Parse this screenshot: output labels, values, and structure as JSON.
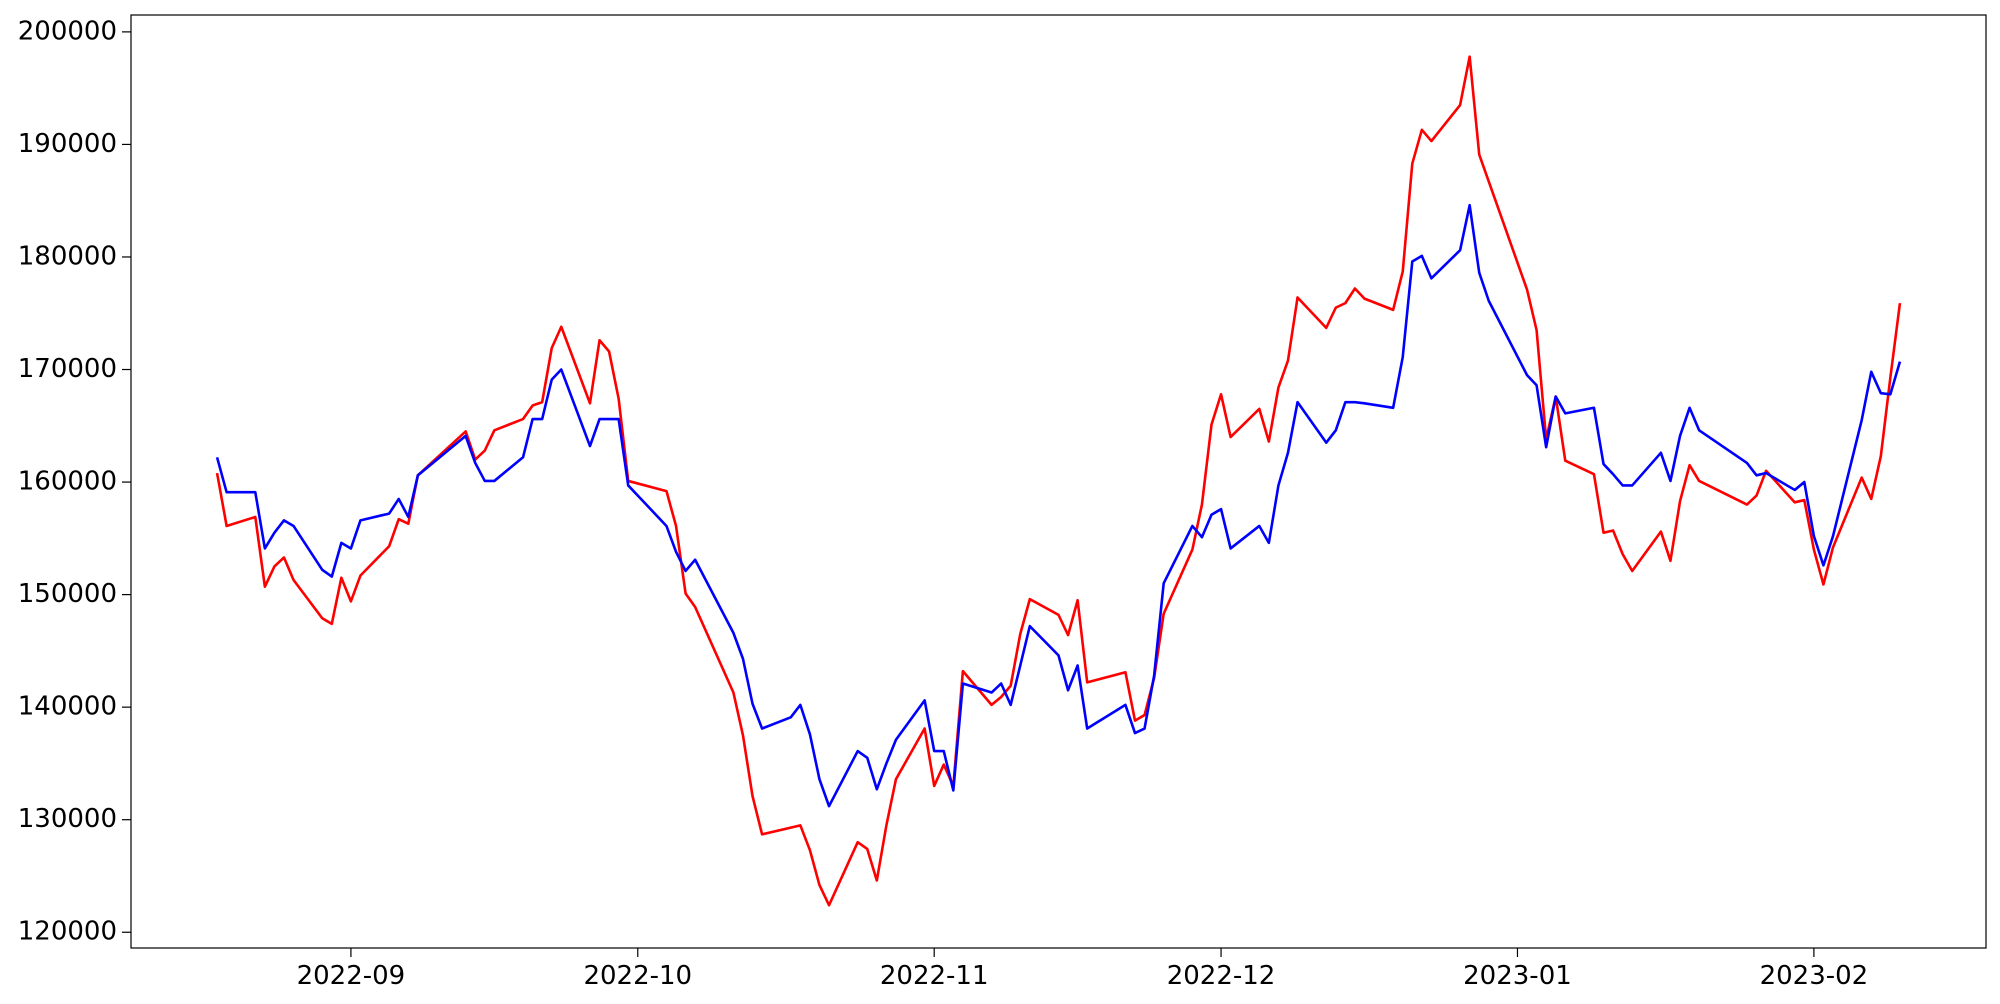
{
  "chart_data": {
    "type": "line",
    "x": [
      "2022-08-18",
      "2022-08-19",
      "2022-08-22",
      "2022-08-23",
      "2022-08-24",
      "2022-08-25",
      "2022-08-26",
      "2022-08-29",
      "2022-08-30",
      "2022-08-31",
      "2022-09-01",
      "2022-09-02",
      "2022-09-05",
      "2022-09-06",
      "2022-09-07",
      "2022-09-08",
      "2022-09-13",
      "2022-09-14",
      "2022-09-15",
      "2022-09-16",
      "2022-09-19",
      "2022-09-20",
      "2022-09-21",
      "2022-09-22",
      "2022-09-23",
      "2022-09-26",
      "2022-09-27",
      "2022-09-28",
      "2022-09-29",
      "2022-09-30",
      "2022-10-04",
      "2022-10-05",
      "2022-10-06",
      "2022-10-07",
      "2022-10-11",
      "2022-10-12",
      "2022-10-13",
      "2022-10-14",
      "2022-10-17",
      "2022-10-18",
      "2022-10-19",
      "2022-10-20",
      "2022-10-21",
      "2022-10-24",
      "2022-10-25",
      "2022-10-26",
      "2022-10-27",
      "2022-10-28",
      "2022-10-31",
      "2022-11-01",
      "2022-11-02",
      "2022-11-03",
      "2022-11-04",
      "2022-11-07",
      "2022-11-08",
      "2022-11-09",
      "2022-11-10",
      "2022-11-11",
      "2022-11-14",
      "2022-11-15",
      "2022-11-16",
      "2022-11-17",
      "2022-11-21",
      "2022-11-22",
      "2022-11-23",
      "2022-11-24",
      "2022-11-25",
      "2022-11-28",
      "2022-11-29",
      "2022-11-30",
      "2022-12-01",
      "2022-12-02",
      "2022-12-05",
      "2022-12-06",
      "2022-12-07",
      "2022-12-08",
      "2022-12-09",
      "2022-12-12",
      "2022-12-13",
      "2022-12-14",
      "2022-12-15",
      "2022-12-16",
      "2022-12-19",
      "2022-12-20",
      "2022-12-21",
      "2022-12-22",
      "2022-12-23",
      "2022-12-26",
      "2022-12-27",
      "2022-12-28",
      "2022-12-29",
      "2023-01-02",
      "2023-01-03",
      "2023-01-04",
      "2023-01-05",
      "2023-01-06",
      "2023-01-09",
      "2023-01-10",
      "2023-01-11",
      "2023-01-12",
      "2023-01-13",
      "2023-01-16",
      "2023-01-17",
      "2023-01-18",
      "2023-01-19",
      "2023-01-20",
      "2023-01-25",
      "2023-01-26",
      "2023-01-27",
      "2023-01-30",
      "2023-01-31",
      "2023-02-01",
      "2023-02-02",
      "2023-02-03",
      "2023-02-06",
      "2023-02-07",
      "2023-02-08",
      "2023-02-09",
      "2023-02-10"
    ],
    "series": [
      {
        "color": "#ff0000",
        "values": [
          160800,
          156100,
          156900,
          150700,
          152500,
          153300,
          151300,
          147900,
          147400,
          151500,
          149400,
          151700,
          154300,
          156700,
          156300,
          160600,
          164500,
          162000,
          162800,
          164600,
          165600,
          166800,
          167100,
          171900,
          173800,
          167000,
          172600,
          171600,
          167400,
          160100,
          159200,
          156100,
          150100,
          148900,
          141300,
          137500,
          132100,
          128700,
          129300,
          129500,
          127300,
          124200,
          122400,
          128000,
          127400,
          124600,
          129500,
          133600,
          138100,
          133000,
          134900,
          133000,
          143200,
          140200,
          140900,
          141900,
          146500,
          149600,
          148200,
          146400,
          149500,
          142200,
          143100,
          138800,
          139300,
          142600,
          148300,
          154000,
          158000,
          165100,
          167800,
          164000,
          166500,
          163600,
          168400,
          170800,
          176400,
          173700,
          175500,
          175900,
          177200,
          176300,
          175300,
          178700,
          188300,
          191300,
          190300,
          193500,
          197800,
          189100,
          186700,
          177100,
          173500,
          163800,
          167600,
          161900,
          160700,
          155500,
          155700,
          153600,
          152100,
          155600,
          153000,
          158300,
          161500,
          160100,
          158000,
          158800,
          161000,
          158200,
          158400,
          154000,
          150900,
          154200,
          160400,
          158500,
          162300,
          169300,
          175900
        ]
      },
      {
        "color": "#0000ff",
        "values": [
          162200,
          159100,
          159100,
          154100,
          155500,
          156600,
          156100,
          152200,
          151600,
          154600,
          154100,
          156600,
          157200,
          158500,
          156900,
          160600,
          164100,
          161700,
          160100,
          160100,
          162200,
          165600,
          165600,
          169100,
          170000,
          163200,
          165600,
          165600,
          165600,
          159700,
          156100,
          153800,
          152100,
          153100,
          146600,
          144300,
          140300,
          138100,
          139100,
          140200,
          137600,
          133600,
          131200,
          136100,
          135500,
          132700,
          135000,
          137100,
          140600,
          136100,
          136100,
          132600,
          142100,
          141300,
          142100,
          140200,
          143700,
          147200,
          144600,
          141500,
          143700,
          138100,
          140200,
          137700,
          138100,
          142800,
          151000,
          156100,
          155100,
          157100,
          157600,
          154100,
          156100,
          154600,
          159700,
          162600,
          167100,
          163500,
          164600,
          167100,
          167100,
          167000,
          166600,
          171100,
          179600,
          180100,
          178100,
          180600,
          184600,
          178600,
          176100,
          169500,
          168600,
          163100,
          167600,
          166100,
          166600,
          161600,
          160700,
          159700,
          159700,
          162600,
          160100,
          164100,
          166600,
          164600,
          161700,
          160600,
          160800,
          159300,
          160000,
          155200,
          152600,
          155200,
          165500,
          169800,
          167900,
          167800,
          170700
        ]
      }
    ],
    "xlim": [
      "2022-08-09",
      "2023-02-19"
    ],
    "xticks": [
      {
        "value": "2022-09-01",
        "label": "2022-09"
      },
      {
        "value": "2022-10-01",
        "label": "2022-10"
      },
      {
        "value": "2022-11-01",
        "label": "2022-11"
      },
      {
        "value": "2022-12-01",
        "label": "2022-12"
      },
      {
        "value": "2023-01-01",
        "label": "2023-01"
      },
      {
        "value": "2023-02-01",
        "label": "2023-02"
      }
    ],
    "ylim": [
      118600,
      201500
    ],
    "yticks": [
      120000,
      130000,
      140000,
      150000,
      160000,
      170000,
      180000,
      190000,
      200000
    ]
  }
}
